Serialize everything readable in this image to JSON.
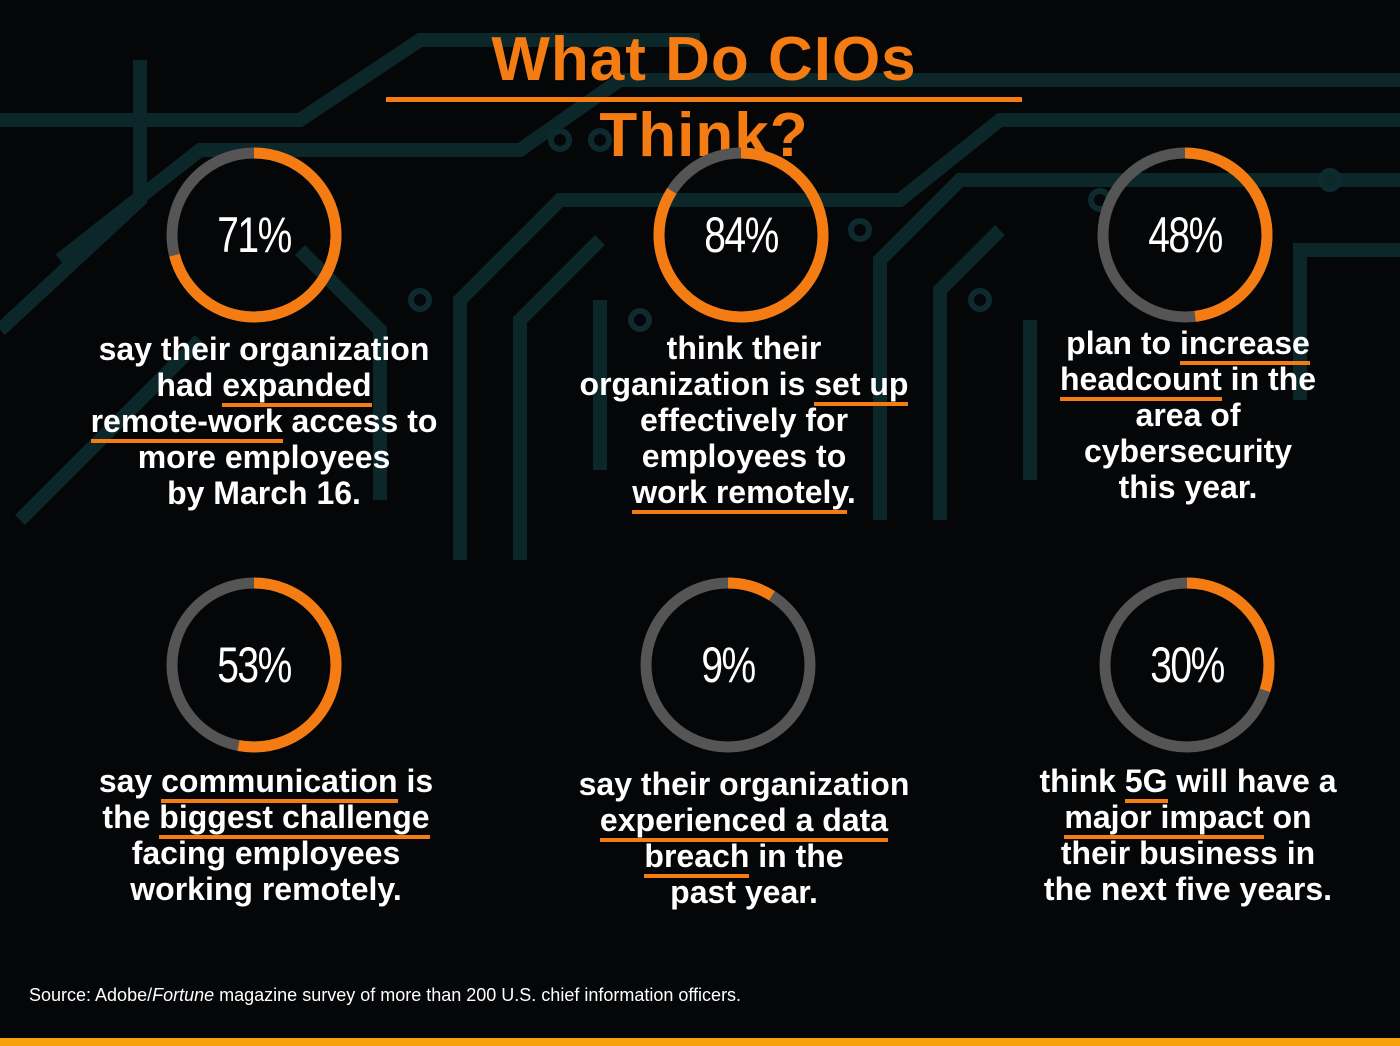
{
  "title": "What Do CIOs Think?",
  "colors": {
    "accent": "#f57c12",
    "track": "#555555",
    "background": "#050608",
    "bar": "#f9a10a"
  },
  "chart_data": {
    "type": "pie",
    "variant": "donut",
    "items": [
      {
        "value": 71,
        "label": "71%",
        "lines": [
          [
            {
              "t": "say their organization"
            }
          ],
          [
            {
              "t": "had "
            },
            {
              "t": "expanded",
              "u": true
            }
          ],
          [
            {
              "t": "remote-work",
              "u": true
            },
            {
              "t": " access to"
            }
          ],
          [
            {
              "t": "more employees"
            }
          ],
          [
            {
              "t": "by March 16."
            }
          ]
        ]
      },
      {
        "value": 84,
        "label": "84%",
        "lines": [
          [
            {
              "t": "think their"
            }
          ],
          [
            {
              "t": "organization is "
            },
            {
              "t": "set up",
              "u": true
            }
          ],
          [
            {
              "t": "effectively for"
            }
          ],
          [
            {
              "t": "employees to"
            }
          ],
          [
            {
              "t": "work remotely",
              "u": true
            },
            {
              "t": "."
            }
          ]
        ]
      },
      {
        "value": 48,
        "label": "48%",
        "lines": [
          [
            {
              "t": "plan to "
            },
            {
              "t": "increase",
              "u": true
            }
          ],
          [
            {
              "t": "headcount",
              "u": true
            },
            {
              "t": " in the"
            }
          ],
          [
            {
              "t": "area of"
            }
          ],
          [
            {
              "t": "cybersecurity"
            }
          ],
          [
            {
              "t": "this year."
            }
          ]
        ]
      },
      {
        "value": 53,
        "label": "53%",
        "lines": [
          [
            {
              "t": "say "
            },
            {
              "t": "communication",
              "u": true
            },
            {
              "t": " is"
            }
          ],
          [
            {
              "t": "the "
            },
            {
              "t": "biggest challenge",
              "u": true
            }
          ],
          [
            {
              "t": "facing employees"
            }
          ],
          [
            {
              "t": "working remotely."
            }
          ]
        ]
      },
      {
        "value": 9,
        "label": "9%",
        "lines": [
          [
            {
              "t": "say their organization"
            }
          ],
          [
            {
              "t": "experienced a data",
              "u": true
            }
          ],
          [
            {
              "t": "breach",
              "u": true
            },
            {
              "t": " in the"
            }
          ],
          [
            {
              "t": "past year."
            }
          ]
        ]
      },
      {
        "value": 30,
        "label": "30%",
        "lines": [
          [
            {
              "t": "think "
            },
            {
              "t": "5G",
              "u": true
            },
            {
              "t": " will have a"
            }
          ],
          [
            {
              "t": "major impact",
              "u": true
            },
            {
              "t": " on"
            }
          ],
          [
            {
              "t": "their business in"
            }
          ],
          [
            {
              "t": "the next five years."
            }
          ]
        ]
      }
    ]
  },
  "source": {
    "prefix": "Source: Adobe/",
    "italic": "Fortune",
    "suffix": " magazine survey of more than 200 U.S. chief information officers."
  }
}
